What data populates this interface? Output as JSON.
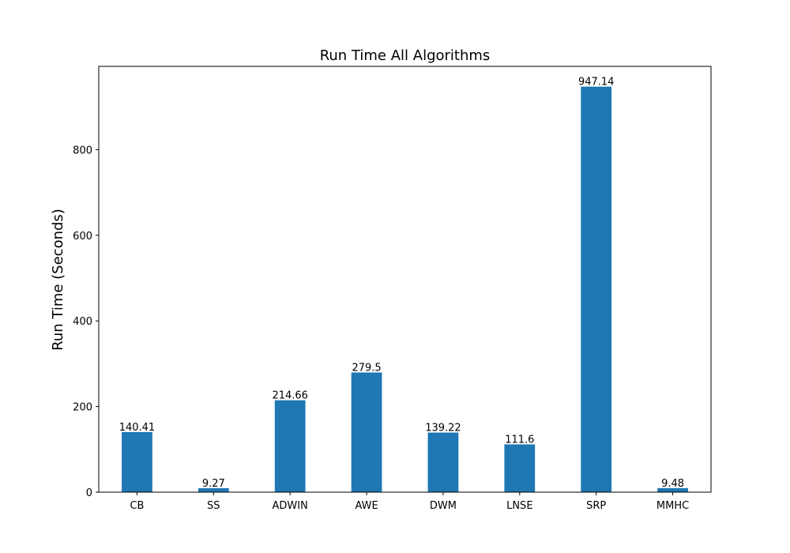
{
  "chart_data": {
    "type": "bar",
    "title": "Run Time All Algorithms",
    "xlabel": "",
    "ylabel": "Run Time (Seconds)",
    "categories": [
      "CB",
      "SS",
      "ADWIN",
      "AWE",
      "DWM",
      "LNSE",
      "SRP",
      "MMHC"
    ],
    "values": [
      140.41,
      9.27,
      214.66,
      279.5,
      139.22,
      111.6,
      947.14,
      9.48
    ],
    "value_labels": [
      "140.41",
      "9.27",
      "214.66",
      "279.5",
      "139.22",
      "111.6",
      "947.14",
      "9.48"
    ],
    "ylim": [
      0,
      994.5
    ],
    "yticks": [
      0,
      200,
      400,
      600,
      800
    ],
    "ytick_labels": [
      "0",
      "200",
      "400",
      "600",
      "800"
    ],
    "grid": false,
    "legend": "none",
    "bar_color": "#1f77b4"
  }
}
